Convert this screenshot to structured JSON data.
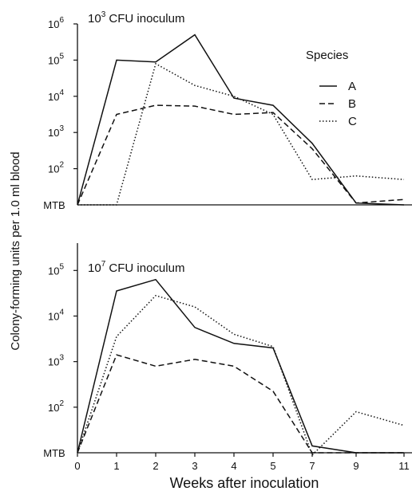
{
  "chart_data": {
    "type": "line",
    "xlabel": "Weeks after inoculation",
    "ylabel": "Colony-forming units per 1.0 ml blood",
    "x_ticks": [
      "0",
      "1",
      "2",
      "3",
      "4",
      "5",
      "7",
      "9",
      "11"
    ],
    "baseline_label": "MTB",
    "legend": {
      "title": "Species",
      "placement": "top-right",
      "entries": [
        {
          "name": "A",
          "style": "solid"
        },
        {
          "name": "B",
          "style": "dashed"
        },
        {
          "name": "C",
          "style": "dotted"
        }
      ]
    },
    "panels": [
      {
        "title_base": "10",
        "title_exp": "3",
        "title_rest": " CFU inoculum",
        "y_ticks": [
          2,
          3,
          4,
          5,
          6
        ],
        "series": [
          {
            "name": "A",
            "values": [
              1.0,
              5.0,
              4.95,
              5.7,
              3.95,
              3.75,
              2.7,
              1.05,
              1.0
            ]
          },
          {
            "name": "B",
            "values": [
              1.0,
              3.5,
              3.75,
              3.73,
              3.5,
              3.55,
              2.55,
              1.05,
              1.15
            ]
          },
          {
            "name": "C",
            "values": [
              1.0,
              1.0,
              4.9,
              4.3,
              4.0,
              3.5,
              1.7,
              1.8,
              1.7
            ]
          }
        ]
      },
      {
        "title_base": "10",
        "title_exp": "7",
        "title_rest": " CFU inoculum",
        "y_ticks": [
          2,
          3,
          4,
          5
        ],
        "series": [
          {
            "name": "A",
            "values": [
              1.0,
              4.55,
              4.8,
              3.75,
              3.4,
              3.3,
              1.15,
              1.0,
              1.0
            ]
          },
          {
            "name": "B",
            "values": [
              1.0,
              3.15,
              2.9,
              3.05,
              2.9,
              2.35,
              1.0,
              1.0,
              1.0
            ]
          },
          {
            "name": "C",
            "values": [
              1.0,
              3.55,
              4.45,
              4.2,
              3.6,
              3.33,
              0.95,
              1.9,
              1.6
            ]
          }
        ]
      }
    ]
  }
}
